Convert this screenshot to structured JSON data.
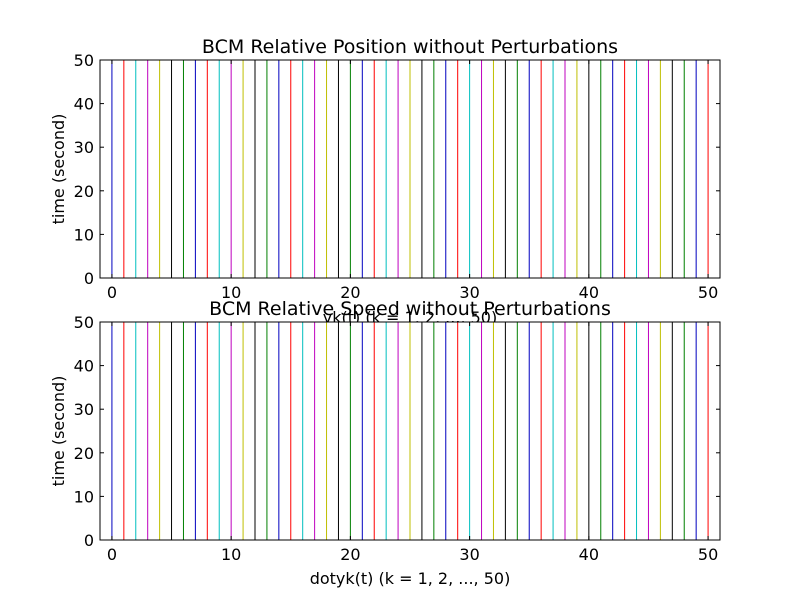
{
  "chart_data": [
    {
      "type": "line",
      "title": "BCM Relative Position without Perturbations",
      "xlabel": "yk(t) (k = 1, 2, ..., 50)",
      "ylabel": "time (second)",
      "xlim": [
        -1,
        51
      ],
      "ylim": [
        0,
        50
      ],
      "xticks": [
        0,
        10,
        20,
        30,
        40,
        50
      ],
      "yticks": [
        0,
        10,
        20,
        30,
        40,
        50
      ],
      "grid": false,
      "series_x": [
        0,
        1,
        2,
        3,
        4,
        5,
        6,
        7,
        8,
        9,
        10,
        11,
        12,
        13,
        14,
        15,
        16,
        17,
        18,
        19,
        20,
        21,
        22,
        23,
        24,
        25,
        26,
        27,
        28,
        29,
        30,
        31,
        32,
        33,
        34,
        35,
        36,
        37,
        38,
        39,
        40,
        41,
        42,
        43,
        44,
        45,
        46,
        47,
        48,
        49,
        50
      ],
      "series_time_range": [
        0,
        50
      ]
    },
    {
      "type": "line",
      "title": "BCM Relative Speed without Perturbations",
      "xlabel": "dotyk(t) (k = 1, 2, ..., 50)",
      "ylabel": "time (second)",
      "xlim": [
        -1,
        51
      ],
      "ylim": [
        0,
        50
      ],
      "xticks": [
        0,
        10,
        20,
        30,
        40,
        50
      ],
      "yticks": [
        0,
        10,
        20,
        30,
        40,
        50
      ],
      "grid": false,
      "series_x": [
        0,
        1,
        2,
        3,
        4,
        5,
        6,
        7,
        8,
        9,
        10,
        11,
        12,
        13,
        14,
        15,
        16,
        17,
        18,
        19,
        20,
        21,
        22,
        23,
        24,
        25,
        26,
        27,
        28,
        29,
        30,
        31,
        32,
        33,
        34,
        35,
        36,
        37,
        38,
        39,
        40,
        41,
        42,
        43,
        44,
        45,
        46,
        47,
        48,
        49,
        50
      ],
      "series_time_range": [
        0,
        50
      ]
    }
  ],
  "colors": {
    "cycle": [
      "#0000bf",
      "#ff0000",
      "#00bfbf",
      "#bf00bf",
      "#bfbf00",
      "#000000",
      "#007f00"
    ],
    "axes": "#000000",
    "background": "#ffffff"
  }
}
